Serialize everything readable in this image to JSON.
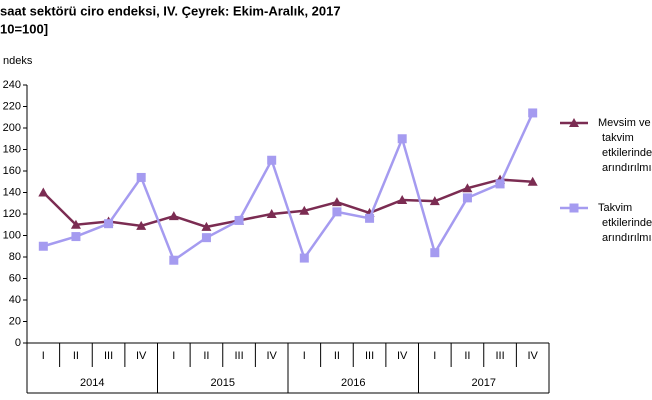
{
  "chart_data": {
    "type": "line",
    "title": "saat sektörü  ciro endeksi, IV. Çeyrek:  Ekim-Aralık, 2017",
    "subtitle": "10=100]",
    "y_label": "ndeks",
    "categories": [
      "I",
      "II",
      "III",
      "IV",
      "I",
      "II",
      "III",
      "IV",
      "I",
      "II",
      "III",
      "IV",
      "I",
      "II",
      "III",
      "IV"
    ],
    "years": [
      "2014",
      "2015",
      "2016",
      "2017"
    ],
    "series": [
      {
        "name": "Mevsim ve takvim etkilerinden arındırılmış",
        "color": "#7b2c52",
        "marker": "triangle",
        "values": [
          140,
          110,
          113,
          109,
          118,
          108,
          114,
          120,
          123,
          131,
          121,
          133,
          132,
          144,
          152,
          150
        ]
      },
      {
        "name": "Takvim etkilerinden arındırılmış",
        "color": "#a59bf0",
        "marker": "square",
        "values": [
          90,
          99,
          111,
          154,
          77,
          98,
          114,
          170,
          79,
          122,
          116,
          190,
          84,
          135,
          148,
          214
        ]
      }
    ],
    "ylim": [
      0,
      240
    ],
    "yticks": [
      0,
      20,
      40,
      60,
      80,
      100,
      120,
      140,
      160,
      180,
      200,
      220,
      240
    ],
    "grid": false
  }
}
